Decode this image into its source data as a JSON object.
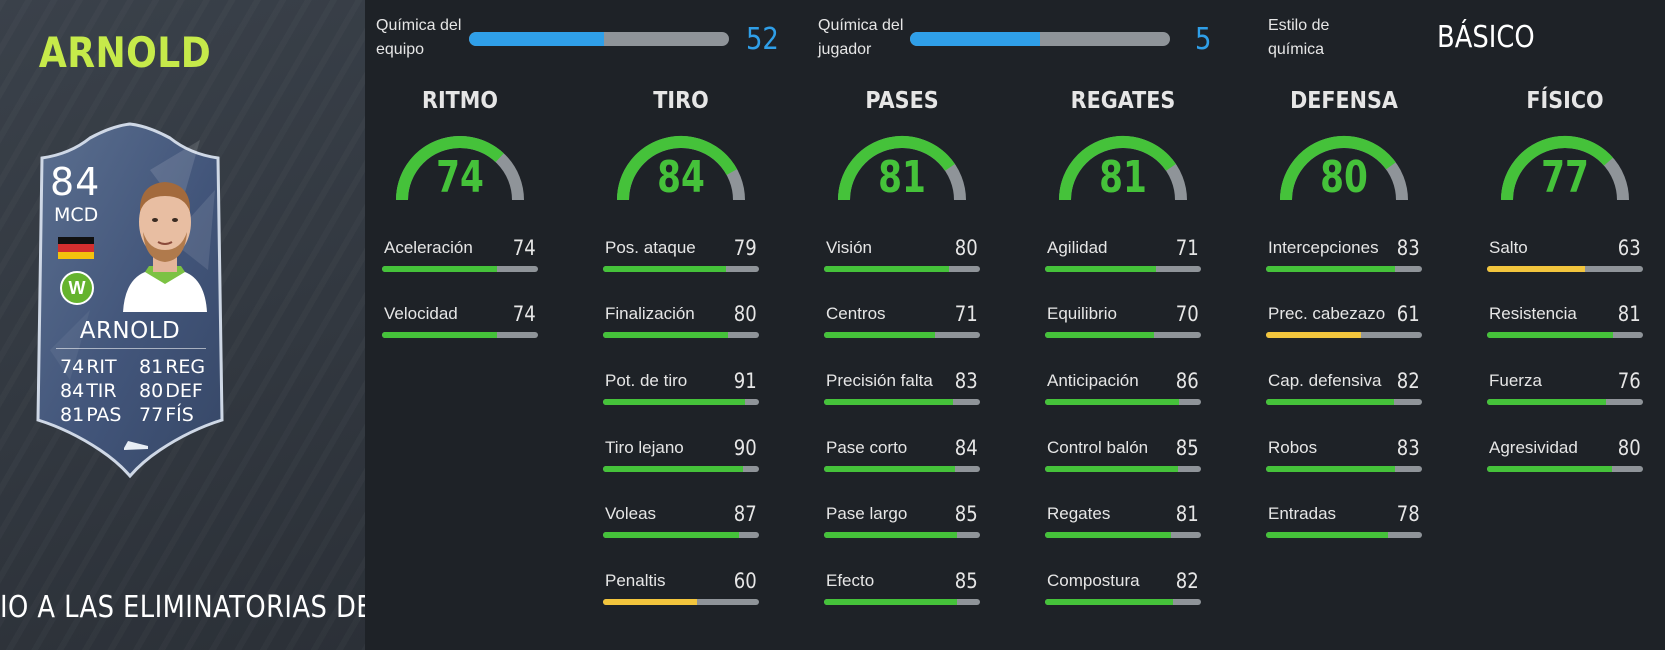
{
  "player": {
    "title": "ARNOLD",
    "card_name": "ARNOLD",
    "rating": "84",
    "position": "MCD",
    "club_initial": "W",
    "card_stats": [
      {
        "value": "74",
        "label": "RIT"
      },
      {
        "value": "81",
        "label": "REG"
      },
      {
        "value": "84",
        "label": "TIR"
      },
      {
        "value": "80",
        "label": "DEF"
      },
      {
        "value": "81",
        "label": "PAS"
      },
      {
        "value": "77",
        "label": "FÍS"
      }
    ]
  },
  "banner": "IO A LAS ELIMINATORIAS DE",
  "chemistry": {
    "team_label": "Química del\nequipo",
    "team_value": "52",
    "team_fill": 0.52,
    "player_label": "Química del\njugador",
    "player_value": "5",
    "player_fill": 0.5,
    "style_label": "Estilo de\nquímica",
    "style_value": "BÁSICO"
  },
  "colors": {
    "green": "#45c23a",
    "yellow": "#f2c53d",
    "blue": "#2f9fe8",
    "track": "#8f9499"
  },
  "categories": [
    {
      "title": "RITMO",
      "value": 74,
      "subs": [
        {
          "label": "Aceleración",
          "value": 74
        },
        {
          "label": "Velocidad",
          "value": 74
        }
      ]
    },
    {
      "title": "TIRO",
      "value": 84,
      "subs": [
        {
          "label": "Pos. ataque",
          "value": 79
        },
        {
          "label": "Finalización",
          "value": 80
        },
        {
          "label": "Pot. de tiro",
          "value": 91
        },
        {
          "label": "Tiro lejano",
          "value": 90
        },
        {
          "label": "Voleas",
          "value": 87
        },
        {
          "label": "Penaltis",
          "value": 60
        }
      ]
    },
    {
      "title": "PASES",
      "value": 81,
      "subs": [
        {
          "label": "Visión",
          "value": 80
        },
        {
          "label": "Centros",
          "value": 71
        },
        {
          "label": "Precisión falta",
          "value": 83
        },
        {
          "label": "Pase corto",
          "value": 84
        },
        {
          "label": "Pase largo",
          "value": 85
        },
        {
          "label": "Efecto",
          "value": 85
        }
      ]
    },
    {
      "title": "REGATES",
      "value": 81,
      "subs": [
        {
          "label": "Agilidad",
          "value": 71
        },
        {
          "label": "Equilibrio",
          "value": 70
        },
        {
          "label": "Anticipación",
          "value": 86
        },
        {
          "label": "Control balón",
          "value": 85
        },
        {
          "label": "Regates",
          "value": 81
        },
        {
          "label": "Compostura",
          "value": 82
        }
      ]
    },
    {
      "title": "DEFENSA",
      "value": 80,
      "subs": [
        {
          "label": "Intercepciones",
          "value": 83
        },
        {
          "label": "Prec. cabezazo",
          "value": 61
        },
        {
          "label": "Cap. defensiva",
          "value": 82
        },
        {
          "label": "Robos",
          "value": 83
        },
        {
          "label": "Entradas",
          "value": 78
        }
      ]
    },
    {
      "title": "FÍSICO",
      "value": 77,
      "subs": [
        {
          "label": "Salto",
          "value": 63
        },
        {
          "label": "Resistencia",
          "value": 81
        },
        {
          "label": "Fuerza",
          "value": 76
        },
        {
          "label": "Agresividad",
          "value": 80
        }
      ]
    }
  ]
}
